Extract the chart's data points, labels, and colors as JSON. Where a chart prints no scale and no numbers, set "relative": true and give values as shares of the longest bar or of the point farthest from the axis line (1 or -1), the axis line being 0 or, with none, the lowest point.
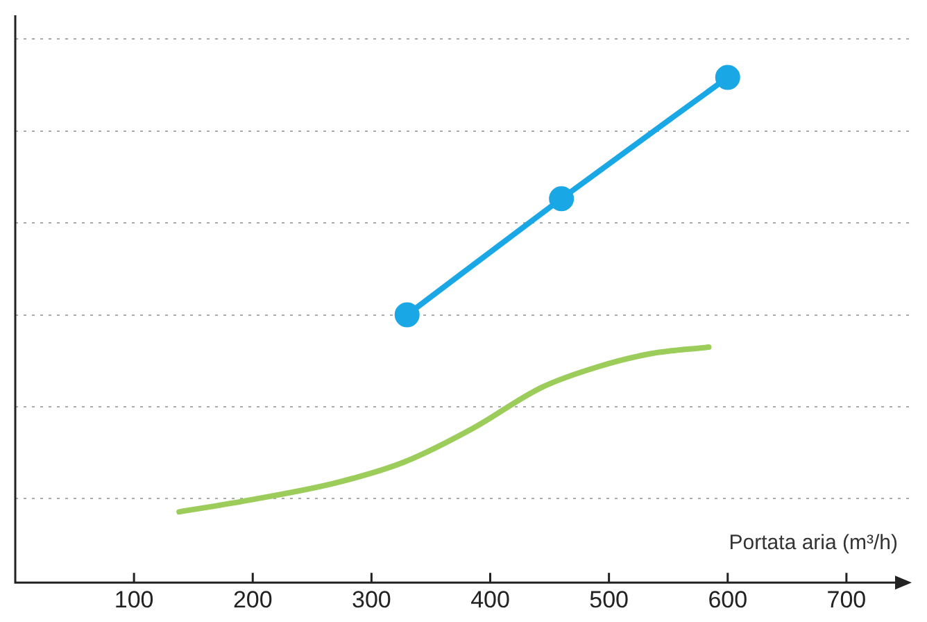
{
  "chart_data": {
    "type": "line",
    "relative": true,
    "xlabel": "Portata aria (m³/h)",
    "xlim": [
      0,
      755
    ],
    "xticks": [
      100,
      200,
      300,
      400,
      500,
      600,
      700
    ],
    "grid": "y",
    "legend": false,
    "series": [
      {
        "color": "#1aa7e6",
        "marker": "circle",
        "x": [
          330,
          460,
          600
        ],
        "values": [
          0.53,
          0.76,
          1
        ]
      },
      {
        "color": "#9ccc5a",
        "marker": "none",
        "x": [
          138,
          199,
          271,
          328,
          386,
          443,
          489,
          535,
          584
        ],
        "values": [
          0.14,
          0.164,
          0.198,
          0.239,
          0.306,
          0.386,
          0.426,
          0.453,
          0.466
        ]
      }
    ]
  }
}
